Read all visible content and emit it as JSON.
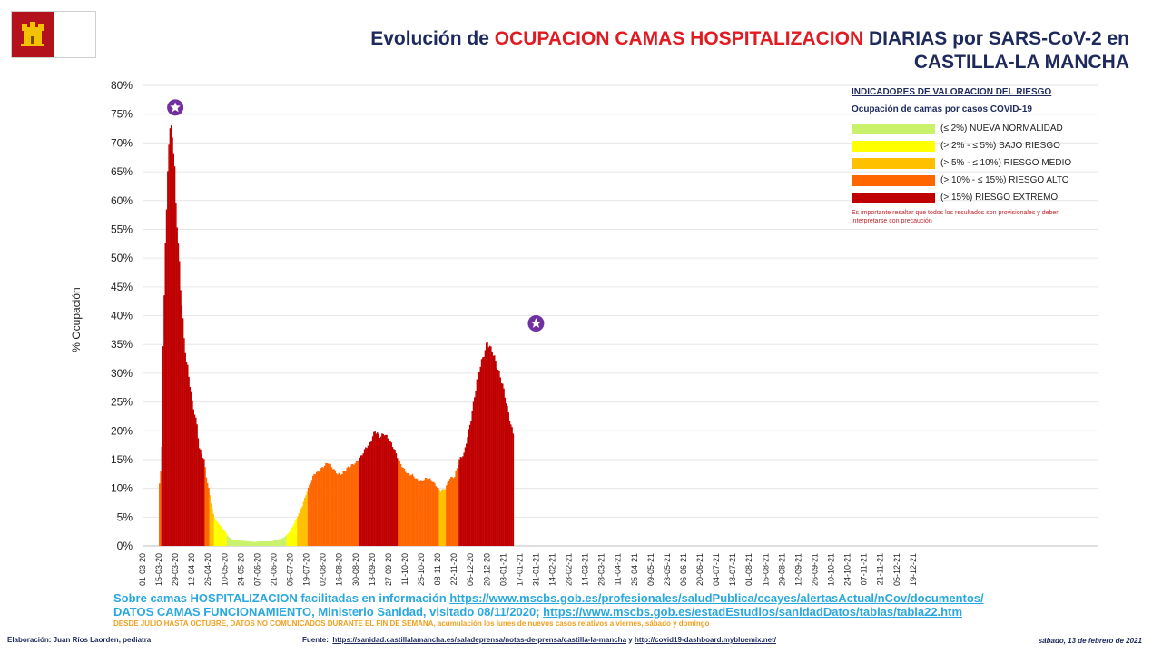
{
  "header": {
    "title_part1": "Evolución de ",
    "title_highlight": "OCUPACION CAMAS HOSPITALIZACION",
    "title_part2": " DIARIAS por SARS-CoV-2 en",
    "title_line2": "CASTILLA-LA MANCHA"
  },
  "legend": {
    "title": "INDICADORES DE VALORACION DEL RIESGO",
    "subtitle": "Ocupación de camas por casos COVID-19",
    "items": [
      {
        "label": "(≤ 2%) NUEVA NORMALIDAD",
        "color": "#c9f26a"
      },
      {
        "label": "(> 2% - ≤ 5%)  BAJO RIESGO",
        "color": "#ffff00"
      },
      {
        "label": "(> 5% - ≤ 10%) RIESGO  MEDIO",
        "color": "#ffc000"
      },
      {
        "label": "(> 10% - ≤ 15%) RIESGO  ALTO",
        "color": "#ff6600"
      },
      {
        "label": "(> 15%) RIESGO  EXTREMO",
        "color": "#c00000"
      }
    ],
    "note": "Es importante resaltar que todos los resultados son provisionales y deben  interpretarse con precaución"
  },
  "chart_data": {
    "type": "bar",
    "title": "Evolución de OCUPACION CAMAS HOSPITALIZACION DIARIAS por SARS-CoV-2 en CASTILLA-LA MANCHA",
    "ylabel": "% Ocupación",
    "xlabel": "",
    "ylim": [
      0,
      80
    ],
    "yticks": [
      "0%",
      "5%",
      "10%",
      "15%",
      "20%",
      "25%",
      "30%",
      "35%",
      "40%",
      "45%",
      "50%",
      "55%",
      "60%",
      "65%",
      "70%",
      "75%",
      "80%"
    ],
    "xticks": [
      "01-03-20",
      "15-03-20",
      "29-03-20",
      "12-04-20",
      "26-04-20",
      "10-05-20",
      "24-05-20",
      "07-06-20",
      "21-06-20",
      "05-07-20",
      "19-07-20",
      "02-08-20",
      "16-08-20",
      "30-08-20",
      "13-09-20",
      "27-09-20",
      "11-10-20",
      "25-10-20",
      "08-11-20",
      "22-11-20",
      "06-12-20",
      "20-12-20",
      "03-01-21",
      "17-01-21",
      "31-01-21",
      "14-02-21",
      "28-02-21",
      "14-03-21",
      "28-03-21",
      "11-04-21",
      "25-04-21",
      "09-05-21",
      "23-05-21",
      "06-06-21",
      "20-06-21",
      "04-07-21",
      "18-07-21",
      "01-08-21",
      "15-08-21",
      "29-08-21",
      "12-09-21",
      "26-09-21",
      "10-10-21",
      "24-10-21",
      "07-11-21",
      "21-11-21",
      "05-12-21",
      "19-12-21"
    ],
    "x_start": "01-03-20",
    "first_value_day": 14,
    "thresholds": [
      2,
      5,
      10,
      15
    ],
    "colors": [
      "#c9f26a",
      "#ffff00",
      "#ffc000",
      "#ff6600",
      "#c00000"
    ],
    "peak_markers": [
      {
        "date": "29-03-20",
        "value": 73
      },
      {
        "date": "31-01-21",
        "value": 35.5
      }
    ],
    "keyframes": [
      [
        14,
        11
      ],
      [
        15,
        13
      ],
      [
        16,
        17
      ],
      [
        17,
        35
      ],
      [
        18,
        44
      ],
      [
        19,
        52
      ],
      [
        20,
        58
      ],
      [
        21,
        66
      ],
      [
        22,
        70
      ],
      [
        24,
        73
      ],
      [
        25,
        72
      ],
      [
        26,
        68
      ],
      [
        27,
        65
      ],
      [
        28,
        60
      ],
      [
        29,
        56
      ],
      [
        30,
        52
      ],
      [
        31,
        49
      ],
      [
        32,
        45
      ],
      [
        33,
        42
      ],
      [
        35,
        36
      ],
      [
        37,
        32
      ],
      [
        38,
        31
      ],
      [
        40,
        28
      ],
      [
        42,
        25
      ],
      [
        44,
        23
      ],
      [
        46,
        21
      ],
      [
        48,
        17
      ],
      [
        50,
        16
      ],
      [
        52,
        15
      ],
      [
        54,
        12
      ],
      [
        56,
        10
      ],
      [
        58,
        7.5
      ],
      [
        60,
        5.5
      ],
      [
        62,
        4.5
      ],
      [
        64,
        4
      ],
      [
        66,
        3.5
      ],
      [
        68,
        3
      ],
      [
        70,
        2.5
      ],
      [
        72,
        1.8
      ],
      [
        75,
        1.2
      ],
      [
        80,
        1
      ],
      [
        85,
        0.9
      ],
      [
        90,
        0.8
      ],
      [
        95,
        0.7
      ],
      [
        100,
        0.8
      ],
      [
        105,
        0.8
      ],
      [
        110,
        0.8
      ],
      [
        115,
        1.1
      ],
      [
        120,
        1.4
      ],
      [
        124,
        2.2
      ],
      [
        128,
        3.5
      ],
      [
        132,
        5.2
      ],
      [
        136,
        7
      ],
      [
        140,
        9.5
      ],
      [
        143,
        11
      ],
      [
        146,
        12.5
      ],
      [
        150,
        13
      ],
      [
        155,
        14
      ],
      [
        158,
        14.5
      ],
      [
        162,
        13.5
      ],
      [
        166,
        12.5
      ],
      [
        170,
        12.5
      ],
      [
        174,
        13.5
      ],
      [
        178,
        14
      ],
      [
        182,
        14.5
      ],
      [
        186,
        15.5
      ],
      [
        190,
        17
      ],
      [
        194,
        18
      ],
      [
        198,
        20
      ],
      [
        202,
        19
      ],
      [
        206,
        19.5
      ],
      [
        210,
        18.5
      ],
      [
        214,
        17
      ],
      [
        218,
        15
      ],
      [
        222,
        13.5
      ],
      [
        226,
        12.5
      ],
      [
        230,
        12.3
      ],
      [
        234,
        11.5
      ],
      [
        238,
        11.3
      ],
      [
        242,
        11.8
      ],
      [
        246,
        11.5
      ],
      [
        250,
        10.5
      ],
      [
        254,
        9.5
      ],
      [
        258,
        10
      ],
      [
        262,
        11.8
      ],
      [
        266,
        12
      ],
      [
        270,
        15
      ],
      [
        274,
        16
      ],
      [
        277,
        19
      ],
      [
        280,
        22
      ],
      [
        283,
        26
      ],
      [
        286,
        30
      ],
      [
        289,
        32
      ],
      [
        292,
        34
      ],
      [
        294,
        35.5
      ],
      [
        296,
        34.5
      ],
      [
        298,
        34
      ],
      [
        301,
        32
      ],
      [
        304,
        30
      ],
      [
        307,
        28
      ],
      [
        310,
        25
      ],
      [
        313,
        22
      ],
      [
        316,
        19.5
      ]
    ]
  },
  "info": {
    "line1_text": "Sobre camas HOSPITALIZACION  facilitadas en información ",
    "line1_link": "https://www.mscbs.gob.es/profesionales/saludPublica/ccayes/alertasActual/nCov/documentos/",
    "line2_text": "DATOS  CAMAS  FUNCIONAMIENTO,  Ministerio  Sanidad, visitado 08/11/2020;  ",
    "line2_link": "https://www.mscbs.gob.es/estadEstudios/sanidadDatos/tablas/tabla22.htm",
    "line3": "DESDE JULIO HASTA OCTUBRE, DATOS  NO COMUNICADOS DURANTE EL FIN DE SEMANA, acumulación los lunes de  nuevos casos relativos a viernes, sábado y domingo"
  },
  "footer": {
    "elaboracion": "Elaboración: Juan Ríos Laorden, pediatra",
    "fuente_label": "Fuente:",
    "fuente_link1": "https://sanidad.castillalamancha.es/saladeprensa/notas-de-prensa/castilla-la-mancha",
    "fuente_and": " y ",
    "fuente_link2": "http://covid19-dashboard.mybluemix.net/",
    "date": "sábado, 13 de febrero de  2021"
  }
}
